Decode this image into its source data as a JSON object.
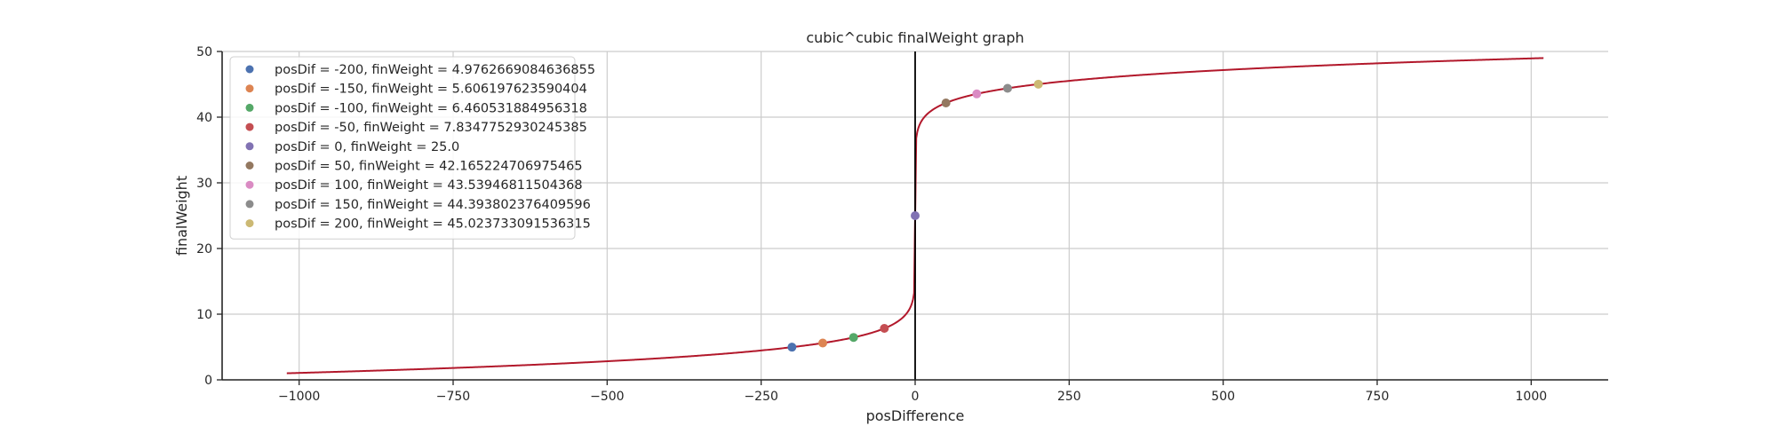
{
  "chart_data": {
    "type": "scatter",
    "title": "cubic^cubic finalWeight graph",
    "xlabel": "posDifference",
    "ylabel": "finalWeight",
    "xlim": [
      -1125,
      1125
    ],
    "ylim": [
      0,
      50
    ],
    "xticks": [
      -1000,
      -750,
      -500,
      -250,
      0,
      250,
      500,
      750,
      1000
    ],
    "yticks": [
      0,
      10,
      20,
      30,
      40,
      50
    ],
    "grid": true,
    "legend_position": "top-left",
    "curve": {
      "color": "#b2182b",
      "x_range": [
        -1020,
        1020
      ]
    },
    "vline": {
      "x": 0,
      "color": "#000000"
    },
    "series": [
      {
        "name": "posDif = -200, finWeight = 4.9762669084636855",
        "x": -200,
        "y": 4.9762669084636855,
        "color": "#4c72b0"
      },
      {
        "name": "posDif = -150, finWeight = 5.606197623590404",
        "x": -150,
        "y": 5.606197623590404,
        "color": "#dd8452"
      },
      {
        "name": "posDif = -100, finWeight = 6.460531884956318",
        "x": -100,
        "y": 6.460531884956318,
        "color": "#55a868"
      },
      {
        "name": "posDif = -50, finWeight = 7.8347752930245385",
        "x": -50,
        "y": 7.8347752930245385,
        "color": "#c44e52"
      },
      {
        "name": "posDif = 0, finWeight = 25.0",
        "x": 0,
        "y": 25.0,
        "color": "#8172b3"
      },
      {
        "name": "posDif = 50, finWeight = 42.165224706975465",
        "x": 50,
        "y": 42.165224706975465,
        "color": "#937860"
      },
      {
        "name": "posDif = 100, finWeight = 43.53946811504368",
        "x": 100,
        "y": 43.53946811504368,
        "color": "#da8bc3"
      },
      {
        "name": "posDif = 150, finWeight = 44.393802376409596",
        "x": 150,
        "y": 44.393802376409596,
        "color": "#8c8c8c"
      },
      {
        "name": "posDif = 200, finWeight = 45.023733091536315",
        "x": 200,
        "y": 45.023733091536315,
        "color": "#ccb974"
      }
    ]
  }
}
